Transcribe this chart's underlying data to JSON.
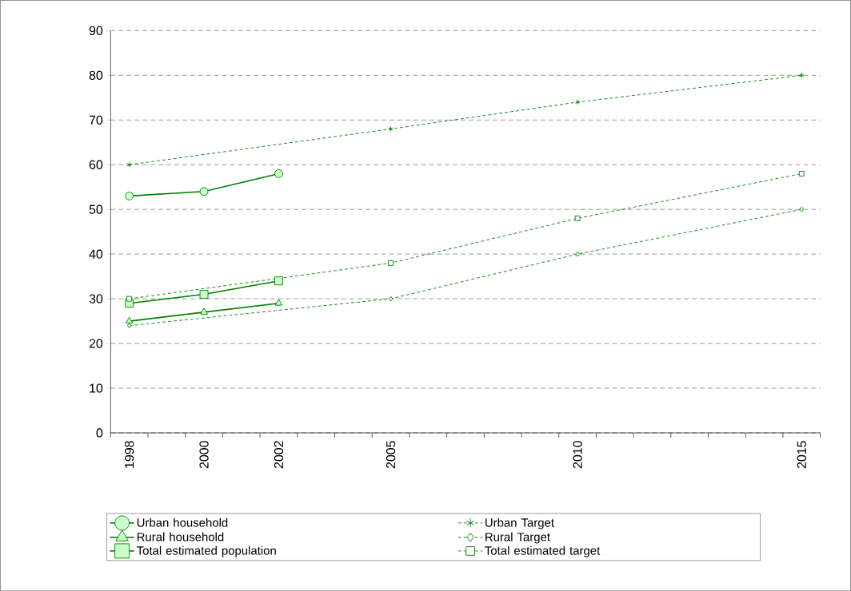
{
  "chart_data": {
    "type": "line",
    "categories": [
      "1998",
      null,
      "2000",
      null,
      "2002",
      null,
      null,
      "2005",
      null,
      null,
      null,
      null,
      "2010",
      null,
      null,
      null,
      null,
      null,
      "2015"
    ],
    "ylim": [
      0,
      90
    ],
    "yticks": [
      0,
      10,
      20,
      30,
      40,
      50,
      60,
      70,
      80,
      90
    ],
    "grid": "y",
    "legend": "bottom",
    "series": [
      {
        "name": "Urban household",
        "color": "#008000",
        "marker": "circle",
        "line_style": "solid",
        "values": [
          53,
          null,
          54,
          null,
          58,
          null,
          null,
          null,
          null,
          null,
          null,
          null,
          null,
          null,
          null,
          null,
          null,
          null,
          null
        ]
      },
      {
        "name": "Rural household",
        "color": "#008000",
        "marker": "triangle",
        "line_style": "solid",
        "values": [
          25,
          null,
          27,
          null,
          29,
          null,
          null,
          null,
          null,
          null,
          null,
          null,
          null,
          null,
          null,
          null,
          null,
          null,
          null
        ]
      },
      {
        "name": "Total estimated population",
        "color": "#008000",
        "marker": "square",
        "line_style": "solid",
        "values": [
          29,
          null,
          31,
          null,
          34,
          null,
          null,
          null,
          null,
          null,
          null,
          null,
          null,
          null,
          null,
          null,
          null,
          null,
          null
        ]
      },
      {
        "name": "Urban Target",
        "color": "#008000",
        "marker": "cross",
        "line_style": "dashed",
        "values": [
          60,
          null,
          null,
          null,
          null,
          null,
          null,
          68,
          null,
          null,
          null,
          null,
          74,
          null,
          null,
          null,
          null,
          null,
          80
        ]
      },
      {
        "name": "Rural Target",
        "color": "#008000",
        "marker": "diamond",
        "line_style": "dashed",
        "values": [
          24,
          null,
          null,
          null,
          null,
          null,
          null,
          30,
          null,
          null,
          null,
          null,
          40,
          null,
          null,
          null,
          null,
          null,
          50
        ]
      },
      {
        "name": "Total estimated target",
        "color": "#008000",
        "marker": "square",
        "line_style": "dashed",
        "values": [
          30,
          null,
          null,
          null,
          null,
          null,
          null,
          38,
          null,
          null,
          null,
          null,
          48,
          null,
          null,
          null,
          null,
          null,
          58
        ]
      }
    ]
  }
}
